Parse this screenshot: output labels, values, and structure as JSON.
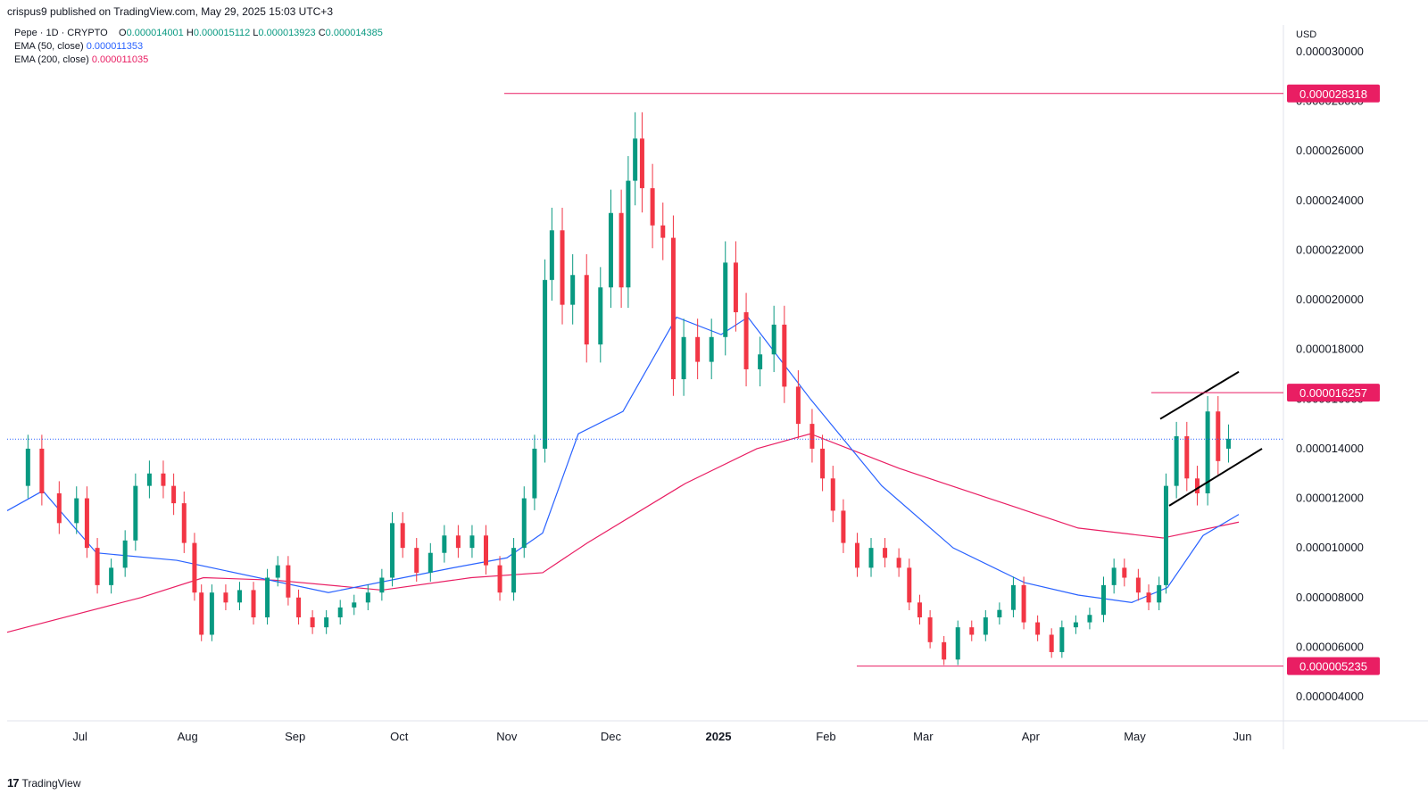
{
  "header": {
    "published": "crispus9 published on TradingView.com, May 29, 2025 15:03 UTC+3"
  },
  "legend": {
    "symbol": "Pepe · 1D · CRYPTO",
    "o_label": "O",
    "o_value": "0.000014001",
    "h_label": "H",
    "h_value": "0.000015112",
    "l_label": "L",
    "l_value": "0.000013923",
    "c_label": "C",
    "c_value": "0.000014385",
    "ema50_label": "EMA (50, close)",
    "ema50_value": "0.000011353",
    "ema200_label": "EMA (200, close)",
    "ema200_value": "0.000011035"
  },
  "footer": {
    "brand_mark": "17",
    "brand": "TradingView"
  },
  "colors": {
    "up": "#089981",
    "down": "#f23645",
    "ema50": "#2962ff",
    "ema200": "#e91e63",
    "level": "#e91e63"
  },
  "chart_data": {
    "type": "candlestick",
    "title": "Pepe · 1D · CRYPTO",
    "currency": "USD",
    "ylim": [
      3.5e-06,
      3.1e-05
    ],
    "y_ticks": [
      "0.000004000",
      "0.000006000",
      "0.000008000",
      "0.000010000",
      "0.000012000",
      "0.000014000",
      "0.000016000",
      "0.000018000",
      "0.000020000",
      "0.000022000",
      "0.000024000",
      "0.000026000",
      "0.000028000",
      "0.000030000"
    ],
    "x_ticks": [
      "Jul",
      "Aug",
      "Sep",
      "Oct",
      "Nov",
      "Dec",
      "2025",
      "Feb",
      "Mar",
      "Apr",
      "May",
      "Jun"
    ],
    "date_range": [
      "2024-06-10",
      "2025-06-15"
    ],
    "candles": [
      [
        "2024-06-16",
        12.5,
        14.0
      ],
      [
        "2024-06-20",
        14.0,
        12.2
      ],
      [
        "2024-06-25",
        12.2,
        11.0
      ],
      [
        "2024-06-30",
        11.0,
        12.0
      ],
      [
        "2024-07-03",
        12.0,
        10.0
      ],
      [
        "2024-07-06",
        10.0,
        8.5
      ],
      [
        "2024-07-10",
        8.5,
        9.2
      ],
      [
        "2024-07-14",
        9.2,
        10.3
      ],
      [
        "2024-07-17",
        10.3,
        12.5
      ],
      [
        "2024-07-21",
        12.5,
        13.0
      ],
      [
        "2024-07-25",
        13.0,
        12.5
      ],
      [
        "2024-07-28",
        12.5,
        11.8
      ],
      [
        "2024-07-31",
        11.8,
        10.2
      ],
      [
        "2024-08-03",
        10.2,
        8.2
      ],
      [
        "2024-08-05",
        8.2,
        6.5
      ],
      [
        "2024-08-08",
        6.5,
        8.2
      ],
      [
        "2024-08-12",
        8.2,
        7.8
      ],
      [
        "2024-08-16",
        7.8,
        8.3
      ],
      [
        "2024-08-20",
        8.3,
        7.2
      ],
      [
        "2024-08-24",
        7.2,
        8.8
      ],
      [
        "2024-08-27",
        8.8,
        9.3
      ],
      [
        "2024-08-30",
        9.3,
        8.0
      ],
      [
        "2024-09-02",
        8.0,
        7.2
      ],
      [
        "2024-09-06",
        7.2,
        6.8
      ],
      [
        "2024-09-10",
        6.8,
        7.2
      ],
      [
        "2024-09-14",
        7.2,
        7.6
      ],
      [
        "2024-09-18",
        7.6,
        7.8
      ],
      [
        "2024-09-22",
        7.8,
        8.2
      ],
      [
        "2024-09-26",
        8.2,
        8.8
      ],
      [
        "2024-09-29",
        8.8,
        11.0
      ],
      [
        "2024-10-02",
        11.0,
        10.0
      ],
      [
        "2024-10-06",
        10.0,
        9.0
      ],
      [
        "2024-10-10",
        9.0,
        9.8
      ],
      [
        "2024-10-14",
        9.8,
        10.5
      ],
      [
        "2024-10-18",
        10.5,
        10.0
      ],
      [
        "2024-10-22",
        10.0,
        10.5
      ],
      [
        "2024-10-26",
        10.5,
        9.3
      ],
      [
        "2024-10-30",
        9.3,
        8.2
      ],
      [
        "2024-11-03",
        8.2,
        10.0
      ],
      [
        "2024-11-06",
        10.0,
        12.0
      ],
      [
        "2024-11-09",
        12.0,
        14.0
      ],
      [
        "2024-11-12",
        14.0,
        20.8
      ],
      [
        "2024-11-14",
        20.8,
        22.8
      ],
      [
        "2024-11-17",
        22.8,
        19.8
      ],
      [
        "2024-11-20",
        19.8,
        21.0
      ],
      [
        "2024-11-24",
        21.0,
        18.2
      ],
      [
        "2024-11-28",
        18.2,
        20.5
      ],
      [
        "2024-12-01",
        20.5,
        23.5
      ],
      [
        "2024-12-04",
        23.5,
        20.5
      ],
      [
        "2024-12-06",
        20.5,
        24.8
      ],
      [
        "2024-12-08",
        24.8,
        26.5
      ],
      [
        "2024-12-10",
        26.5,
        24.5
      ],
      [
        "2024-12-13",
        24.5,
        23.0
      ],
      [
        "2024-12-16",
        23.0,
        22.5
      ],
      [
        "2024-12-19",
        22.5,
        16.8
      ],
      [
        "2024-12-22",
        16.8,
        18.5
      ],
      [
        "2024-12-26",
        18.5,
        17.5
      ],
      [
        "2024-12-30",
        17.5,
        18.5
      ],
      [
        "2025-01-03",
        18.5,
        21.5
      ],
      [
        "2025-01-06",
        21.5,
        19.5
      ],
      [
        "2025-01-09",
        19.5,
        17.2
      ],
      [
        "2025-01-13",
        17.2,
        17.8
      ],
      [
        "2025-01-17",
        17.8,
        19.0
      ],
      [
        "2025-01-20",
        19.0,
        16.5
      ],
      [
        "2025-01-24",
        16.5,
        15.0
      ],
      [
        "2025-01-28",
        15.0,
        14.0
      ],
      [
        "2025-01-31",
        14.0,
        12.8
      ],
      [
        "2025-02-03",
        12.8,
        11.5
      ],
      [
        "2025-02-06",
        11.5,
        10.2
      ],
      [
        "2025-02-10",
        10.2,
        9.2
      ],
      [
        "2025-02-14",
        9.2,
        10.0
      ],
      [
        "2025-02-18",
        10.0,
        9.6
      ],
      [
        "2025-02-22",
        9.6,
        9.2
      ],
      [
        "2025-02-25",
        9.2,
        7.8
      ],
      [
        "2025-02-28",
        7.8,
        7.2
      ],
      [
        "2025-03-03",
        7.2,
        6.2
      ],
      [
        "2025-03-07",
        6.2,
        5.5
      ],
      [
        "2025-03-11",
        5.5,
        6.8
      ],
      [
        "2025-03-15",
        6.8,
        6.5
      ],
      [
        "2025-03-19",
        6.5,
        7.2
      ],
      [
        "2025-03-23",
        7.2,
        7.5
      ],
      [
        "2025-03-27",
        7.5,
        8.5
      ],
      [
        "2025-03-30",
        8.5,
        7.0
      ],
      [
        "2025-04-03",
        7.0,
        6.5
      ],
      [
        "2025-04-07",
        6.5,
        5.8
      ],
      [
        "2025-04-10",
        5.8,
        6.8
      ],
      [
        "2025-04-14",
        6.8,
        7.0
      ],
      [
        "2025-04-18",
        7.0,
        7.3
      ],
      [
        "2025-04-22",
        7.3,
        8.5
      ],
      [
        "2025-04-25",
        8.5,
        9.2
      ],
      [
        "2025-04-28",
        9.2,
        8.8
      ],
      [
        "2025-05-02",
        8.8,
        8.2
      ],
      [
        "2025-05-05",
        8.2,
        7.8
      ],
      [
        "2025-05-08",
        7.8,
        8.5
      ],
      [
        "2025-05-10",
        8.5,
        12.5
      ],
      [
        "2025-05-13",
        12.5,
        14.5
      ],
      [
        "2025-05-16",
        14.5,
        12.8
      ],
      [
        "2025-05-19",
        12.8,
        12.2
      ],
      [
        "2025-05-22",
        12.2,
        15.5
      ],
      [
        "2025-05-25",
        15.5,
        13.5
      ],
      [
        "2025-05-28",
        14.0,
        14.4
      ]
    ],
    "candle_units": "1e-6 USD (open, close)",
    "ema50": [
      [
        0,
        11.5
      ],
      [
        40,
        12.3
      ],
      [
        100,
        9.8
      ],
      [
        190,
        9.5
      ],
      [
        360,
        8.2
      ],
      [
        500,
        9.2
      ],
      [
        560,
        9.6
      ],
      [
        600,
        10.6
      ],
      [
        640,
        14.6
      ],
      [
        690,
        15.5
      ],
      [
        750,
        19.3
      ],
      [
        800,
        18.6
      ],
      [
        830,
        19.3
      ],
      [
        900,
        16.0
      ],
      [
        980,
        12.5
      ],
      [
        1060,
        10.0
      ],
      [
        1140,
        8.6
      ],
      [
        1200,
        8.1
      ],
      [
        1260,
        7.8
      ],
      [
        1300,
        8.4
      ],
      [
        1340,
        10.5
      ],
      [
        1380,
        11.35
      ]
    ],
    "ema200": [
      [
        0,
        6.6
      ],
      [
        150,
        8.0
      ],
      [
        220,
        8.8
      ],
      [
        300,
        8.7
      ],
      [
        420,
        8.3
      ],
      [
        520,
        8.8
      ],
      [
        600,
        9.0
      ],
      [
        650,
        10.2
      ],
      [
        760,
        12.6
      ],
      [
        840,
        14.0
      ],
      [
        900,
        14.6
      ],
      [
        1000,
        13.2
      ],
      [
        1100,
        12.0
      ],
      [
        1200,
        10.8
      ],
      [
        1295,
        10.4
      ],
      [
        1380,
        11.04
      ]
    ],
    "ema_x_units": "pixel-free index along chart width scaled 0..1380",
    "levels": [
      {
        "label": "0.000028318",
        "value": 28.318
      },
      {
        "label": "0.000016257",
        "value": 16.257
      },
      {
        "label": "0.000005235",
        "value": 5.235
      }
    ],
    "current_price": 14.385,
    "channel": {
      "upper": [
        [
          1300,
          15.2
        ],
        [
          1388,
          17.1
        ]
      ],
      "lower": [
        [
          1310,
          11.7
        ],
        [
          1414,
          14.0
        ]
      ]
    }
  }
}
